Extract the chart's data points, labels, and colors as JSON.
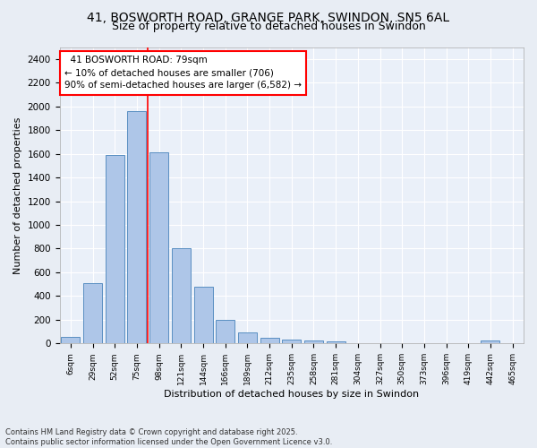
{
  "title_line1": "41, BOSWORTH ROAD, GRANGE PARK, SWINDON, SN5 6AL",
  "title_line2": "Size of property relative to detached houses in Swindon",
  "xlabel": "Distribution of detached houses by size in Swindon",
  "ylabel": "Number of detached properties",
  "footnote": "Contains HM Land Registry data © Crown copyright and database right 2025.\nContains public sector information licensed under the Open Government Licence v3.0.",
  "categories": [
    "6sqm",
    "29sqm",
    "52sqm",
    "75sqm",
    "98sqm",
    "121sqm",
    "144sqm",
    "166sqm",
    "189sqm",
    "212sqm",
    "235sqm",
    "258sqm",
    "281sqm",
    "304sqm",
    "327sqm",
    "350sqm",
    "373sqm",
    "396sqm",
    "419sqm",
    "442sqm",
    "465sqm"
  ],
  "values": [
    55,
    510,
    1590,
    1960,
    1610,
    800,
    475,
    200,
    90,
    45,
    35,
    25,
    15,
    0,
    0,
    0,
    0,
    0,
    0,
    25,
    0
  ],
  "bar_color": "#aec6e8",
  "bar_edge_color": "#5a8fc2",
  "vline_color": "red",
  "vline_x_index": 3.5,
  "annotation_text": "  41 BOSWORTH ROAD: 79sqm\n← 10% of detached houses are smaller (706)\n90% of semi-detached houses are larger (6,582) →",
  "annotation_box_color": "white",
  "annotation_box_edge_color": "red",
  "ylim": [
    0,
    2500
  ],
  "yticks": [
    0,
    200,
    400,
    600,
    800,
    1000,
    1200,
    1400,
    1600,
    1800,
    2000,
    2200,
    2400
  ],
  "bg_color": "#e8edf4",
  "plot_bg_color": "#eaf0f9",
  "grid_color": "white",
  "title_fontsize": 10,
  "subtitle_fontsize": 9,
  "annotation_fontsize": 7.5
}
